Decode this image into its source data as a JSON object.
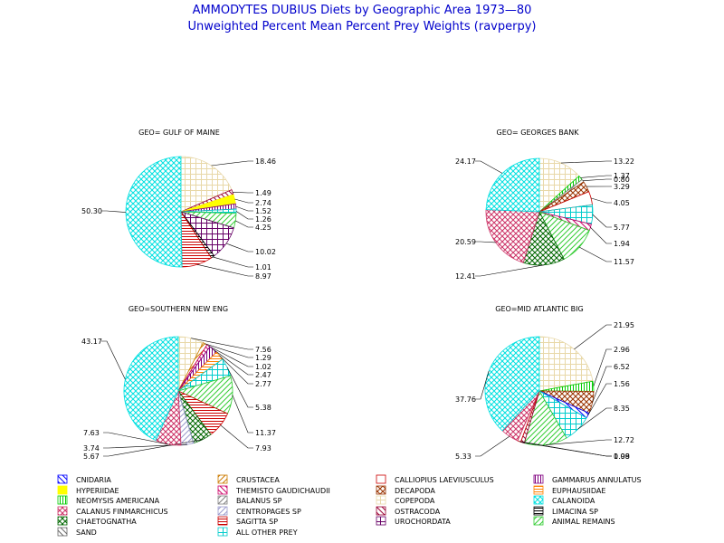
{
  "title": "AMMODYTES DUBIUS Diets by Geographic Area 1973—80",
  "subtitle": "Unweighted Percent Mean Percent Prey  Weights (ravperpy)",
  "chart_data": [
    {
      "type": "pie",
      "title": "GEO= GULF OF MAINE",
      "slices": [
        {
          "category": "COPEPODA",
          "value": 18.46,
          "label": "18.46"
        },
        {
          "category": "OSTRACODA",
          "value": 1.49,
          "label": "1.49"
        },
        {
          "category": "HYPERIIDAE",
          "value": 2.74,
          "label": "2.74"
        },
        {
          "category": "GAMMARUS ANNULATUS",
          "value": 1.52,
          "label": "1.52"
        },
        {
          "category": "ALL OTHER PREY",
          "value": 1.26,
          "label": "1.26"
        },
        {
          "category": "ANIMAL REMAINS",
          "value": 4.25,
          "label": "4.25"
        },
        {
          "category": "UROCHORDATA",
          "value": 10.02,
          "label": "10.02"
        },
        {
          "category": "LIMACINA SP",
          "value": 1.01,
          "label": "1.01"
        },
        {
          "category": "SAGITTA SP",
          "value": 8.97,
          "label": "8.97"
        },
        {
          "category": "CALANOIDA",
          "value": 50.3,
          "label": "50.30"
        }
      ]
    },
    {
      "type": "pie",
      "title": "GEO= GEORGES BANK",
      "slices": [
        {
          "category": "COPEPODA",
          "value": 13.22,
          "label": "13.22"
        },
        {
          "category": "NEOMYSIS AMERICANA",
          "value": 1.37,
          "label": "1.37"
        },
        {
          "category": "BALANUS SP",
          "value": 0.8,
          "label": "0.80"
        },
        {
          "category": "DECAPODA",
          "value": 3.29,
          "label": "3.29"
        },
        {
          "category": "CALLIOPIUS LAEVIUSCULUS",
          "value": 4.05,
          "label": "4.05"
        },
        {
          "category": "ALL OTHER PREY",
          "value": 5.77,
          "label": "5.77"
        },
        {
          "category": "THEMISTO GAUDICHAUDII",
          "value": 1.94,
          "label": "1.94"
        },
        {
          "category": "ANIMAL REMAINS",
          "value": 11.57,
          "label": "11.57"
        },
        {
          "category": "CHAETOGNATHA",
          "value": 12.41,
          "label": "12.41"
        },
        {
          "category": "CALANUS FINMARCHICUS",
          "value": 20.59,
          "label": "20.59"
        },
        {
          "category": "CALANOIDA",
          "value": 24.17,
          "label": "24.17"
        }
      ]
    },
    {
      "type": "pie",
      "title": "GEO=SOUTHERN NEW ENG",
      "slices": [
        {
          "category": "COPEPODA",
          "value": 7.56,
          "label": "7.56"
        },
        {
          "category": "CRUSTACEA",
          "value": 1.29,
          "label": "1.29"
        },
        {
          "category": "THEMISTO GAUDICHAUDII",
          "value": 1.02,
          "label": "1.02"
        },
        {
          "category": "GAMMARUS ANNULATUS",
          "value": 2.47,
          "label": "2.47"
        },
        {
          "category": "EUPHAUSIIDAE",
          "value": 2.77,
          "label": "2.77"
        },
        {
          "category": "ALL OTHER PREY",
          "value": 5.38,
          "label": "5.38"
        },
        {
          "category": "ANIMAL REMAINS",
          "value": 11.37,
          "label": "11.37"
        },
        {
          "category": "SAGITTA SP",
          "value": 7.93,
          "label": "7.93"
        },
        {
          "category": "CHAETOGNATHA",
          "value": 5.67,
          "label": "5.67"
        },
        {
          "category": "CENTROPAGES SP",
          "value": 3.74,
          "label": "3.74"
        },
        {
          "category": "CALANUS FINMARCHICUS",
          "value": 7.63,
          "label": "7.63"
        },
        {
          "category": "CALANOIDA",
          "value": 43.17,
          "label": "43.17"
        }
      ]
    },
    {
      "type": "pie",
      "title": "GEO=MID ATLANTIC BIG",
      "slices": [
        {
          "category": "COPEPODA",
          "value": 21.95,
          "label": "21.95"
        },
        {
          "category": "NEOMYSIS AMERICANA",
          "value": 2.96,
          "label": "2.96"
        },
        {
          "category": "DECAPODA",
          "value": 6.52,
          "label": "6.52"
        },
        {
          "category": "CNIDARIA",
          "value": 1.56,
          "label": "1.56"
        },
        {
          "category": "ALL OTHER PREY",
          "value": 8.35,
          "label": "8.35"
        },
        {
          "category": "ANIMAL REMAINS",
          "value": 12.72,
          "label": "12.72"
        },
        {
          "category": "OSTRACODA",
          "value": 1.08,
          "label": "1.08"
        },
        {
          "category": "CALLIOPIUS LAEVIUSCULUS",
          "value": 0.99,
          "label": "0.99"
        },
        {
          "category": "CALANUS FINMARCHICUS",
          "value": 5.33,
          "label": "5.33"
        },
        {
          "category": "CALANOIDA",
          "value": 37.76,
          "label": "37.76"
        }
      ]
    }
  ],
  "legend": [
    {
      "name": "CNIDARIA",
      "color": "#0000ff",
      "pattern": "diag-rev"
    },
    {
      "name": "CRUSTACEA",
      "color": "#cc7a00",
      "pattern": "diag"
    },
    {
      "name": "CALLIOPIUS LAEVIUSCULUS",
      "color": "#cc0000",
      "pattern": "outline"
    },
    {
      "name": "GAMMARUS ANNULATUS",
      "color": "#800080",
      "pattern": "vert"
    },
    {
      "name": "HYPERIIDAE",
      "color": "#ffff00",
      "pattern": "solid"
    },
    {
      "name": "THEMISTO GAUDICHAUDII",
      "color": "#cc0066",
      "pattern": "diag-rev"
    },
    {
      "name": "DECAPODA",
      "color": "#993300",
      "pattern": "cross-diag"
    },
    {
      "name": "EUPHAUSIIDAE",
      "color": "#ff8000",
      "pattern": "horiz"
    },
    {
      "name": "NEOMYSIS AMERICANA",
      "color": "#00cc00",
      "pattern": "vert"
    },
    {
      "name": "BALANUS SP",
      "color": "#808080",
      "pattern": "diag"
    },
    {
      "name": "COPEPODA",
      "color": "#e8d8a8",
      "pattern": "cross"
    },
    {
      "name": "CALANOIDA",
      "color": "#00e0e0",
      "pattern": "cross-diag"
    },
    {
      "name": "CALANUS FINMARCHICUS",
      "color": "#cc3366",
      "pattern": "cross-diag"
    },
    {
      "name": "CENTROPAGES SP",
      "color": "#9999cc",
      "pattern": "diag"
    },
    {
      "name": "OSTRACODA",
      "color": "#990033",
      "pattern": "diag-rev"
    },
    {
      "name": "LIMACINA SP",
      "color": "#000000",
      "pattern": "horiz"
    },
    {
      "name": "CHAETOGNATHA",
      "color": "#006600",
      "pattern": "cross-diag"
    },
    {
      "name": "SAGITTA SP",
      "color": "#cc0000",
      "pattern": "horiz"
    },
    {
      "name": "UROCHORDATA",
      "color": "#660066",
      "pattern": "cross"
    },
    {
      "name": "ANIMAL REMAINS",
      "color": "#33cc33",
      "pattern": "diag"
    },
    {
      "name": "SAND",
      "color": "#666666",
      "pattern": "diag-rev"
    },
    {
      "name": "ALL OTHER PREY",
      "color": "#00cccc",
      "pattern": "cross"
    }
  ]
}
